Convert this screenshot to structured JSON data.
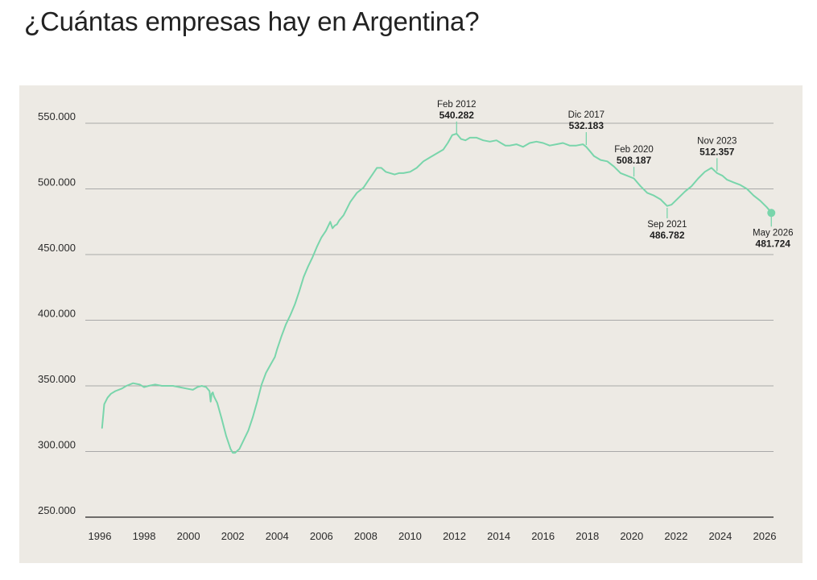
{
  "title": "¿Cuántas empresas hay en Argentina?",
  "colors": {
    "line": "#79d5ab",
    "background": "#edeae4",
    "grid": "#a9a9a9",
    "axis": "#222222"
  },
  "chart_data": {
    "type": "line",
    "title": "¿Cuántas empresas hay en Argentina?",
    "xlabel": "",
    "ylabel": "",
    "grid": true,
    "xlim": [
      1996,
      2026.4
    ],
    "ylim": [
      250000,
      550000
    ],
    "x_ticks": [
      1996,
      1998,
      2000,
      2002,
      2004,
      2006,
      2008,
      2010,
      2012,
      2014,
      2016,
      2018,
      2020,
      2022,
      2024,
      2026
    ],
    "y_ticks": [
      {
        "value": 250000,
        "label": "250.000"
      },
      {
        "value": 300000,
        "label": "300.000"
      },
      {
        "value": 350000,
        "label": "350.000"
      },
      {
        "value": 400000,
        "label": "400.000"
      },
      {
        "value": 450000,
        "label": "450.000"
      },
      {
        "value": 500000,
        "label": "500.000"
      },
      {
        "value": 550000,
        "label": "550.000"
      }
    ],
    "series": [
      {
        "x": [
          1996.1,
          1996.2,
          1996.35,
          1996.5,
          1996.7,
          1997.0,
          1997.2,
          1997.5,
          1997.8,
          1998.0,
          1998.2,
          1998.5,
          1998.8,
          1999.0,
          1999.3,
          1999.6,
          1999.9,
          2000.2,
          2000.4,
          2000.6,
          2000.8,
          2000.95,
          2001.0,
          2001.05,
          2001.1,
          2001.15,
          2001.3,
          2001.5,
          2001.7,
          2001.9,
          2002.0,
          2002.1,
          2002.3,
          2002.5,
          2002.7,
          2002.9,
          2003.1,
          2003.3,
          2003.5,
          2003.7,
          2003.9,
          2004.0,
          2004.2,
          2004.4,
          2004.6,
          2004.8,
          2005.0,
          2005.2,
          2005.4,
          2005.6,
          2005.8,
          2006.0,
          2006.2,
          2006.4,
          2006.5,
          2006.6,
          2006.7,
          2006.8,
          2007.0,
          2007.3,
          2007.6,
          2007.9,
          2008.1,
          2008.3,
          2008.5,
          2008.7,
          2008.9,
          2009.1,
          2009.3,
          2009.5,
          2009.7,
          2010.0,
          2010.3,
          2010.6,
          2010.9,
          2011.2,
          2011.5,
          2011.7,
          2011.9,
          2012.1,
          2012.3,
          2012.5,
          2012.7,
          2013.0,
          2013.3,
          2013.6,
          2013.9,
          2014.1,
          2014.3,
          2014.5,
          2014.8,
          2015.1,
          2015.4,
          2015.7,
          2016.0,
          2016.3,
          2016.6,
          2016.9,
          2017.2,
          2017.5,
          2017.8,
          2017.95,
          2018.1,
          2018.3,
          2018.6,
          2018.9,
          2019.2,
          2019.5,
          2019.8,
          2020.1,
          2020.4,
          2020.7,
          2021.0,
          2021.3,
          2021.6,
          2021.8,
          2022.1,
          2022.4,
          2022.7,
          2023.0,
          2023.3,
          2023.6,
          2023.85,
          2024.1,
          2024.3,
          2024.6,
          2024.9,
          2025.2,
          2025.5,
          2025.8,
          2026.1,
          2026.3
        ],
        "values": [
          318000,
          336000,
          341000,
          344000,
          346000,
          348000,
          350000,
          352000,
          351000,
          349000,
          350000,
          351000,
          350000,
          350000,
          350000,
          349000,
          348000,
          347000,
          349000,
          350000,
          349000,
          346000,
          338000,
          344000,
          345000,
          342000,
          337000,
          325000,
          312000,
          302000,
          299000,
          299000,
          302000,
          309000,
          316000,
          326000,
          338000,
          351000,
          360000,
          366000,
          372000,
          378000,
          388000,
          397000,
          404000,
          412000,
          422000,
          433000,
          441000,
          448000,
          456000,
          463000,
          468000,
          475000,
          470000,
          472000,
          473000,
          476000,
          480000,
          490000,
          497000,
          501000,
          506000,
          511000,
          516000,
          516000,
          513000,
          512000,
          511000,
          512000,
          512000,
          513000,
          516000,
          521000,
          524000,
          527000,
          530000,
          535000,
          541000,
          542000,
          538000,
          537000,
          539000,
          539000,
          537000,
          536000,
          537000,
          535000,
          533000,
          533000,
          534000,
          532000,
          535000,
          536000,
          535000,
          533000,
          534000,
          535000,
          533000,
          533000,
          534000,
          532000,
          529000,
          525000,
          522000,
          521000,
          517000,
          512000,
          510000,
          508000,
          502000,
          497000,
          495000,
          492000,
          487000,
          488000,
          493000,
          498000,
          502000,
          508000,
          513000,
          516000,
          512000,
          510000,
          507000,
          505000,
          503000,
          500000,
          495000,
          491000,
          486000,
          482000
        ]
      }
    ],
    "annotations": [
      {
        "date": "Feb 2012",
        "value": "540.282",
        "x": 2012.1,
        "y": 540282
      },
      {
        "date": "Dic 2017",
        "value": "532.183",
        "x": 2017.95,
        "y": 532183
      },
      {
        "date": "Feb 2020",
        "value": "508.187",
        "x": 2020.1,
        "y": 508187
      },
      {
        "date": "Nov 2023",
        "value": "512.357",
        "x": 2023.85,
        "y": 512357
      },
      {
        "date": "Sep 2021",
        "value": "486.782",
        "x": 2021.6,
        "y": 486782
      },
      {
        "date": "May 2026",
        "value": "481.724",
        "x": 2026.3,
        "y": 481724
      }
    ]
  }
}
